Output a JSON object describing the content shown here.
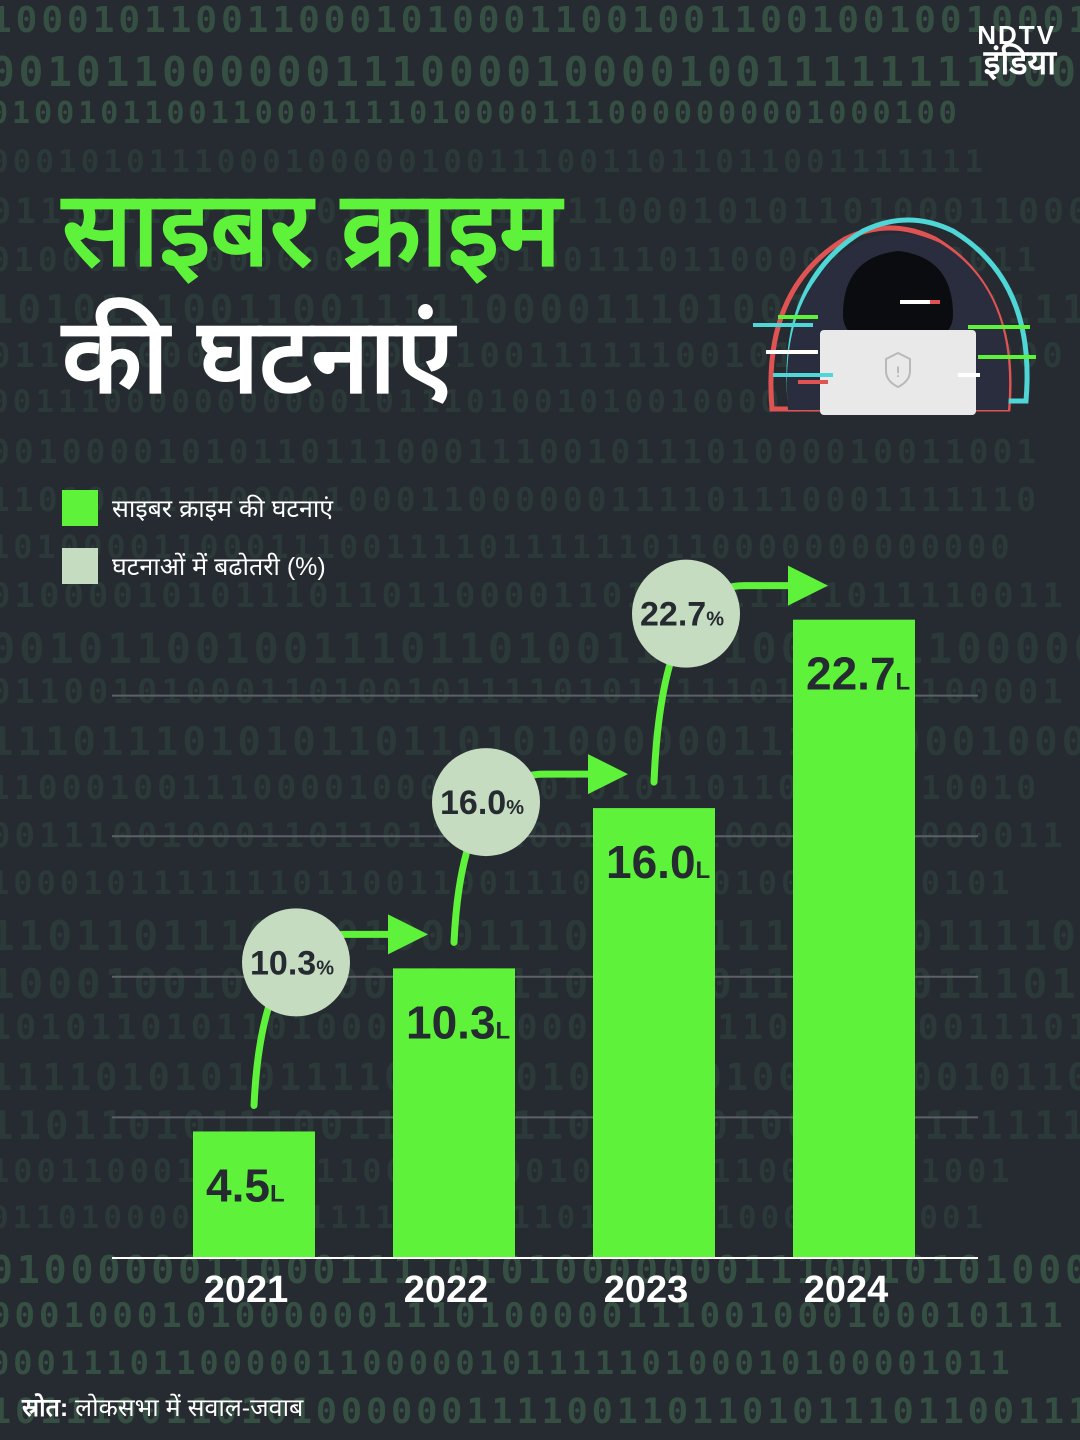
{
  "brand": {
    "logo_line1": "NDTV",
    "logo_line2": "इंडिया"
  },
  "title": {
    "line1": "साइबर क्राइम",
    "line2": "की घटनाएं"
  },
  "legend": [
    {
      "label": "साइबर क्राइम की घटनाएं",
      "color": "#5ff23a"
    },
    {
      "label": "घटनाओं में बढोतरी (%)",
      "color": "#c5dcc0"
    }
  ],
  "colors": {
    "bar": "#5ff23a",
    "bubble": "#c5dcc0",
    "arrow": "#5ff23a",
    "grid": "#5d6068",
    "bar_label": "#262a31",
    "axis_text": "#ffffff"
  },
  "icons": {
    "hero": "hooded-hacker-laptop-icon"
  },
  "chart_data": {
    "type": "bar",
    "categories": [
      "2021",
      "2022",
      "2023",
      "2024"
    ],
    "values": [
      4.5,
      10.3,
      16.0,
      22.7
    ],
    "value_labels": [
      "4.5",
      "10.3",
      "16.0",
      "22.7"
    ],
    "value_unit": "L",
    "growth_labels": [
      "10.3",
      "16.0",
      "22.7"
    ],
    "growth_unit": "%",
    "ylim": [
      0,
      23.4
    ],
    "grid": true
  },
  "source": {
    "prefix": "स्रोत:",
    "text": "लोकसभा में सवाल-जवाब"
  }
}
